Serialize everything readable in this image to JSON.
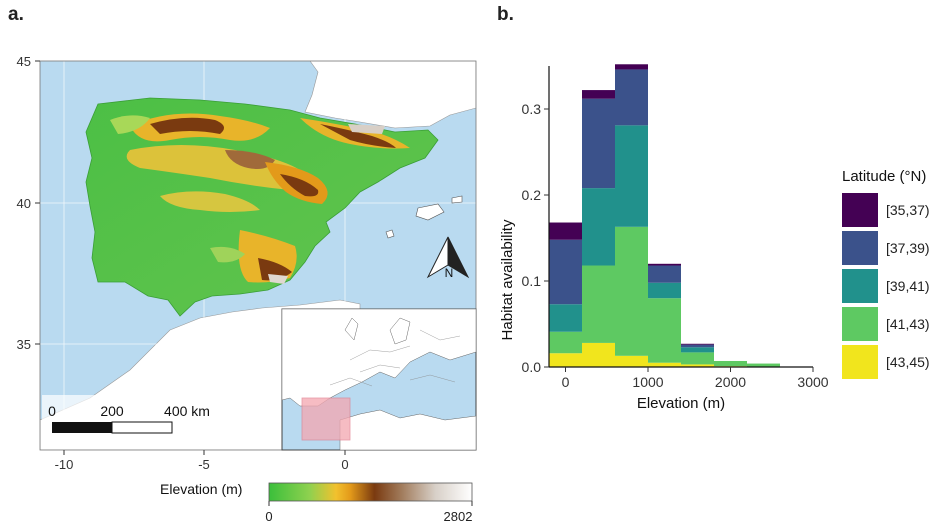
{
  "panels": {
    "a": "a.",
    "b": "b."
  },
  "map": {
    "x_ticks": [
      "-10",
      "-5",
      "0"
    ],
    "y_ticks": [
      "45",
      "40",
      "35"
    ],
    "north_label": "N",
    "scalebar": {
      "labels": [
        "0",
        "200",
        "400 km"
      ]
    },
    "legend": {
      "title": "Elevation (m)",
      "min_label": "0",
      "max_label": "2802",
      "colors": [
        "#3bbf3b",
        "#8fd14f",
        "#f2c12e",
        "#e39a1a",
        "#7a3a10",
        "#a07a5a",
        "#d8d0c8",
        "#ffffff"
      ]
    },
    "colors": {
      "sea": "#b9daf0",
      "land": "#ffffff",
      "inset_box": "#f4a6b0"
    }
  },
  "chart_data": {
    "type": "bar",
    "stacked": true,
    "x": [
      0,
      400,
      800,
      1200,
      1600,
      2000,
      2400
    ],
    "bin_width": 400,
    "xlabel": "Elevation (m)",
    "ylabel": "Habitat availability",
    "xlim": [
      -200,
      3000
    ],
    "ylim": [
      0,
      0.35
    ],
    "x_ticks": [
      "0",
      "1000",
      "2000",
      "3000"
    ],
    "y_ticks": [
      "0.0",
      "0.1",
      "0.2",
      "0.3"
    ],
    "legend_title": "Latitude (°N)",
    "legend_position": "right",
    "series": [
      {
        "name": "[43,45)",
        "color": "#f1e51d",
        "values": [
          0.016,
          0.028,
          0.013,
          0.005,
          0.003,
          0.001,
          0.0
        ]
      },
      {
        "name": "[41,43)",
        "color": "#5ec962",
        "values": [
          0.025,
          0.09,
          0.15,
          0.075,
          0.014,
          0.006,
          0.004
        ]
      },
      {
        "name": "[39,41)",
        "color": "#21918c",
        "values": [
          0.032,
          0.09,
          0.118,
          0.018,
          0.006,
          0.0,
          0.0
        ]
      },
      {
        "name": "[37,39)",
        "color": "#3b528b",
        "values": [
          0.075,
          0.104,
          0.065,
          0.02,
          0.003,
          0.0,
          0.0
        ]
      },
      {
        "name": "[35,37)",
        "color": "#440154",
        "values": [
          0.02,
          0.01,
          0.006,
          0.002,
          0.001,
          0.0,
          0.0
        ]
      }
    ]
  }
}
